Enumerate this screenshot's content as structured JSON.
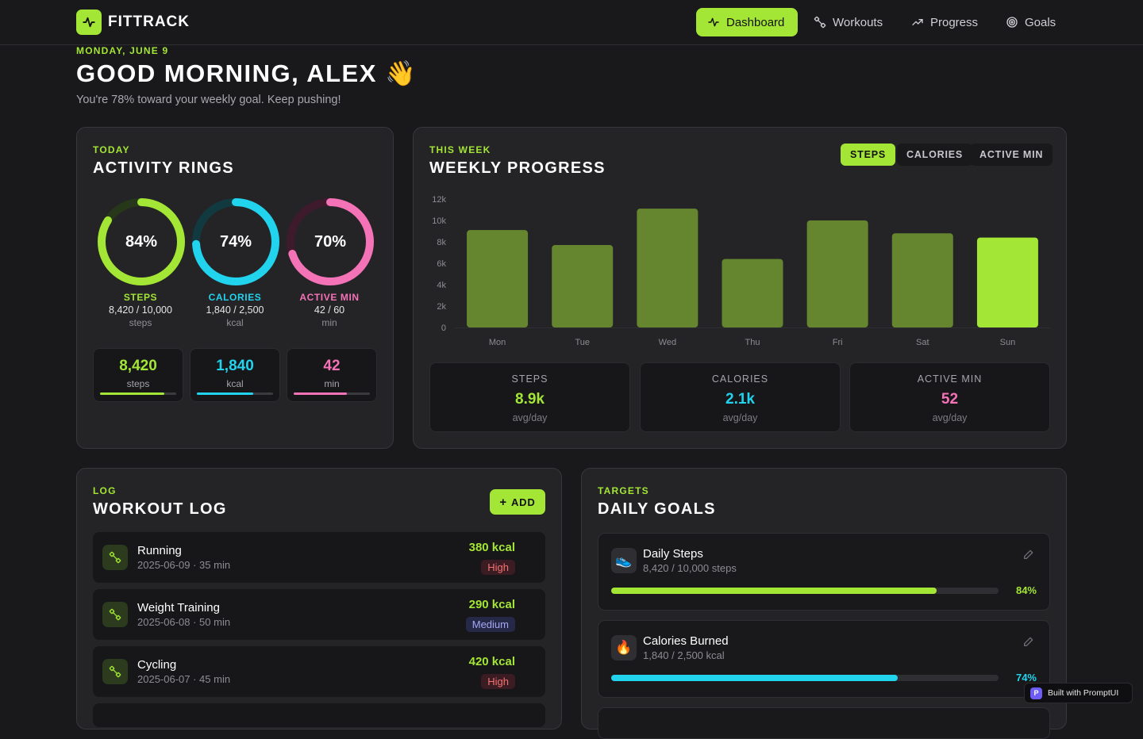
{
  "brand": {
    "name": "FITTRACK"
  },
  "nav": [
    {
      "label": "Dashboard",
      "active": true
    },
    {
      "label": "Workouts",
      "active": false
    },
    {
      "label": "Progress",
      "active": false
    },
    {
      "label": "Goals",
      "active": false
    }
  ],
  "header": {
    "date": "MONDAY, JUNE 9",
    "greeting": "GOOD MORNING, ALEX 👋",
    "subtitle": "You're 78% toward your weekly goal. Keep pushing!"
  },
  "activity": {
    "eyebrow": "TODAY",
    "title": "ACTIVITY RINGS",
    "rings": [
      {
        "pct_label": "84%",
        "fraction": 0.84,
        "label": "STEPS",
        "value": "8,420 / 10,000",
        "unit": "steps",
        "color": "#a3e635",
        "track": "#26371a"
      },
      {
        "pct_label": "74%",
        "fraction": 0.74,
        "label": "CALORIES",
        "value": "1,840 / 2,500",
        "unit": "kcal",
        "color": "#22d3ee",
        "track": "#113a40"
      },
      {
        "pct_label": "70%",
        "fraction": 0.7,
        "label": "ACTIVE MIN",
        "value": "42 / 60",
        "unit": "min",
        "color": "#f472b6",
        "track": "#3d1a2c"
      }
    ],
    "minis": [
      {
        "value": "8,420",
        "unit": "steps",
        "fraction": 0.84,
        "color": "#a3e635"
      },
      {
        "value": "1,840",
        "unit": "kcal",
        "fraction": 0.74,
        "color": "#22d3ee"
      },
      {
        "value": "42",
        "unit": "min",
        "fraction": 0.7,
        "color": "#f472b6"
      }
    ]
  },
  "weekly": {
    "eyebrow": "THIS WEEK",
    "title": "WEEKLY PROGRESS",
    "tabs": [
      {
        "label": "STEPS",
        "active": true
      },
      {
        "label": "CALORIES",
        "active": false
      },
      {
        "label": "ACTIVE MIN",
        "active": false
      }
    ],
    "stats": [
      {
        "label": "STEPS",
        "value": "8.9k",
        "unit": "avg/day",
        "color": "#a3e635"
      },
      {
        "label": "CALORIES",
        "value": "2.1k",
        "unit": "avg/day",
        "color": "#22d3ee"
      },
      {
        "label": "ACTIVE MIN",
        "value": "52",
        "unit": "avg/day",
        "color": "#f472b6"
      }
    ]
  },
  "chart_data": {
    "type": "bar",
    "categories": [
      "Mon",
      "Tue",
      "Wed",
      "Thu",
      "Fri",
      "Sat",
      "Sun"
    ],
    "values": [
      9100,
      7700,
      11100,
      6400,
      10000,
      8800,
      8400
    ],
    "ylim": [
      0,
      12000
    ],
    "yticks": [
      "0",
      "2k",
      "4k",
      "6k",
      "8k",
      "10k",
      "12k"
    ],
    "highlight": "Sun",
    "colors": {
      "bar": "#65862f",
      "highlight": "#a3e635"
    },
    "grid": false
  },
  "workouts": {
    "eyebrow": "LOG",
    "title": "WORKOUT LOG",
    "add_label": "ADD",
    "items": [
      {
        "name": "Running",
        "meta": "2025-06-09 · 35 min",
        "kcal": "380 kcal",
        "intensity": "High"
      },
      {
        "name": "Weight Training",
        "meta": "2025-06-08 · 50 min",
        "kcal": "290 kcal",
        "intensity": "Medium"
      },
      {
        "name": "Cycling",
        "meta": "2025-06-07 · 45 min",
        "kcal": "420 kcal",
        "intensity": "High"
      }
    ]
  },
  "goals": {
    "eyebrow": "TARGETS",
    "title": "DAILY GOALS",
    "items": [
      {
        "icon": "👟",
        "name": "Daily Steps",
        "meta": "8,420 / 10,000 steps",
        "pct": "84%",
        "fraction": 0.84,
        "color": "#a3e635"
      },
      {
        "icon": "🔥",
        "name": "Calories Burned",
        "meta": "1,840 / 2,500 kcal",
        "pct": "74%",
        "fraction": 0.74,
        "color": "#22d3ee"
      }
    ]
  },
  "badge": {
    "mark": "P",
    "label": "Built with PromptUI"
  }
}
